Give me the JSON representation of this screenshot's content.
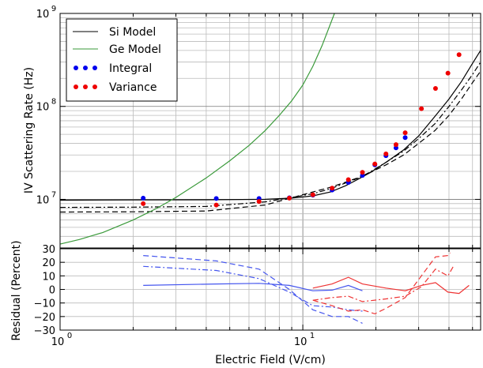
{
  "chart_data": [
    {
      "type": "line",
      "panel": "main",
      "xscale": "log",
      "yscale": "log",
      "xlim": [
        1,
        54
      ],
      "ylim": [
        3000000,
        1000000000
      ],
      "xlabel": "",
      "ylabel": "IV Scattering Rate (Hz)",
      "grid": true,
      "legend": "top-left",
      "x_ticks": [
        {
          "base": "10",
          "exp": "0",
          "value": 1
        },
        {
          "base": "10",
          "exp": "1",
          "value": 10
        }
      ],
      "y_ticks": [
        {
          "base": "10",
          "exp": "7",
          "value": 10000000
        },
        {
          "base": "10",
          "exp": "8",
          "value": 100000000
        },
        {
          "base": "10",
          "exp": "9",
          "value": 1000000000
        }
      ],
      "series": [
        {
          "name": "Si Model",
          "style": "line",
          "color": "#000000",
          "x": [
            1,
            2,
            4,
            7,
            9,
            11,
            13,
            15,
            17,
            19,
            22,
            26,
            30,
            35,
            40,
            45,
            50,
            54
          ],
          "y": [
            9800000,
            9850000,
            9900000,
            10000000,
            10300000,
            10900000,
            12000000,
            14000000,
            16600000,
            19500000,
            25000000,
            34000000,
            48000000,
            78000000,
            120000000,
            185000000,
            290000000,
            400000000
          ]
        },
        {
          "name": "",
          "style": "dashed",
          "color": "#000000",
          "x": [
            1,
            2,
            4,
            7,
            9,
            11,
            13,
            15,
            17,
            19,
            22,
            26,
            30,
            35,
            40,
            45,
            50,
            54
          ],
          "y": [
            7300000,
            7350000,
            7500000,
            8700000,
            10400000,
            12000000,
            13500000,
            15300000,
            17200000,
            19500000,
            23500000,
            30000000,
            40000000,
            55000000,
            80000000,
            120000000,
            180000000,
            240000000
          ]
        },
        {
          "name": "",
          "style": "dashdot",
          "color": "#000000",
          "x": [
            1,
            2,
            4,
            7,
            9,
            11,
            13,
            15,
            17,
            19,
            22,
            26,
            30,
            35,
            40,
            45,
            50,
            54
          ],
          "y": [
            8200000,
            8250000,
            8400000,
            9400000,
            10500000,
            11500000,
            13000000,
            15000000,
            17000000,
            19800000,
            25000000,
            33000000,
            45000000,
            65000000,
            100000000,
            150000000,
            220000000,
            300000000
          ]
        },
        {
          "name": "Ge Model",
          "style": "line",
          "color": "#3a9a3a",
          "x": [
            1,
            1.2,
            1.5,
            2,
            2.5,
            3,
            4,
            5,
            6,
            7,
            8,
            9,
            10,
            11,
            12,
            13.5
          ],
          "y": [
            3300000,
            3700000,
            4400000,
            6000000,
            8000000,
            10500000,
            17000000,
            26000000,
            38000000,
            55000000,
            80000000,
            115000000,
            170000000,
            270000000,
            450000000,
            1000000000
          ]
        },
        {
          "name": "Integral",
          "style": "markers",
          "color": "#0000ee",
          "x": [
            2.2,
            4.4,
            6.6,
            8.8,
            11,
            13.2,
            15.4,
            17.6,
            19.8,
            22,
            24.2,
            26.4
          ],
          "y": [
            10300000,
            10200000,
            10200000,
            10400000,
            11100000,
            12600000,
            15200000,
            18100000,
            23500000,
            29500000,
            35800000,
            46200000
          ]
        },
        {
          "name": "Variance",
          "style": "markers",
          "color": "#ee0000",
          "x": [
            2.2,
            4.4,
            6.6,
            8.8,
            11,
            13.2,
            15.4,
            17.6,
            19.8,
            22,
            24.2,
            26.4,
            30.8,
            35.2,
            39.6,
            44
          ],
          "y": [
            9000000,
            8700000,
            9500000,
            10300000,
            11200000,
            13200000,
            16300000,
            19500000,
            24000000,
            30800000,
            38800000,
            52000000,
            94500000,
            156000000,
            228000000,
            360000000
          ]
        }
      ]
    },
    {
      "type": "line",
      "panel": "residual",
      "xscale": "log",
      "xlim": [
        1,
        54
      ],
      "ylim": [
        -30,
        30
      ],
      "xlabel": "Electric Field (V/cm)",
      "ylabel": "Residual (Percent)",
      "grid": true,
      "x_ticks": [
        {
          "base": "10",
          "exp": "0",
          "value": 1
        },
        {
          "base": "10",
          "exp": "1",
          "value": 10
        }
      ],
      "y_ticks": [
        "30",
        "20",
        "10",
        "0",
        "−10",
        "−20",
        "−30"
      ],
      "series": [
        {
          "name": "",
          "style": "line",
          "color": "#4455ee",
          "x": [
            2.2,
            4.4,
            6.6,
            8.8,
            11,
            13.2,
            15.4,
            17.6
          ],
          "y": [
            3,
            4,
            4.5,
            3,
            -1,
            -0.5,
            3,
            -1
          ]
        },
        {
          "name": "",
          "style": "dashed",
          "color": "#4455ee",
          "x": [
            2.2,
            4.4,
            6.6,
            8.8,
            11,
            13.2,
            15.4,
            17.6
          ],
          "y": [
            25,
            21,
            15,
            0,
            -15,
            -20,
            -20,
            -25
          ]
        },
        {
          "name": "",
          "style": "dashdot",
          "color": "#4455ee",
          "x": [
            2.2,
            4.4,
            6.6,
            8.8,
            11,
            13.2,
            15.4,
            17.6
          ],
          "y": [
            17,
            14,
            8,
            -2,
            -12,
            -13,
            -15,
            -16
          ]
        },
        {
          "name": "",
          "style": "line",
          "color": "#ee3333",
          "x": [
            11,
            13.2,
            15.4,
            17.6,
            22,
            26.4,
            30.8,
            35.2,
            39.6,
            44,
            48.4
          ],
          "y": [
            1,
            4,
            9,
            4,
            1,
            -1,
            3,
            5,
            -2,
            -3,
            3
          ]
        },
        {
          "name": "",
          "style": "dashed",
          "color": "#ee3333",
          "x": [
            11,
            13.2,
            15.4,
            17.6,
            19.8,
            22,
            26.4,
            30.8,
            35.2,
            39.6,
            40.5
          ],
          "y": [
            -8,
            -12,
            -16,
            -15,
            -18,
            -14,
            -6,
            10,
            24,
            25,
            27
          ]
        },
        {
          "name": "",
          "style": "dashdot",
          "color": "#ee3333",
          "x": [
            11,
            13.2,
            15.4,
            17.6,
            22,
            26.4,
            30.8,
            35.2,
            39.6,
            42
          ],
          "y": [
            -8,
            -6,
            -5,
            -9,
            -7,
            -5,
            2,
            15,
            10,
            18
          ]
        }
      ]
    }
  ]
}
